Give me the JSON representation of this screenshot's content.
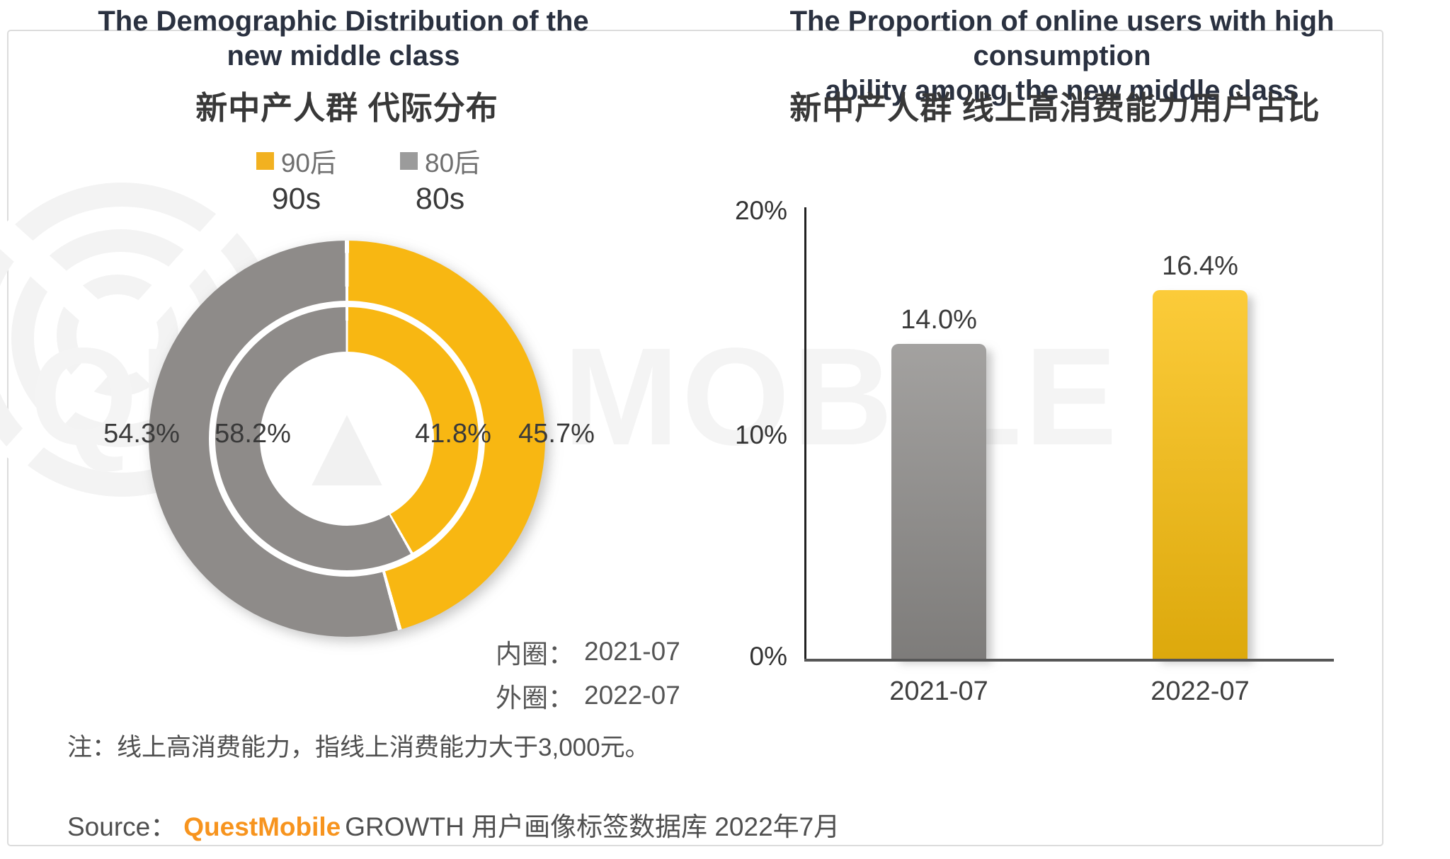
{
  "watermark": "QUEST MOBILE",
  "colors": {
    "brand_orange": "#f7941e",
    "title_navy": "#2a3140",
    "donut_yellow": "#f8b712",
    "donut_gray": "#8e8b89",
    "bar_gray": "#8f8d8b",
    "bar_yellow": "#fbc00e",
    "frame_border": "#dcdcdc"
  },
  "left_panel": {
    "title_en_line1": "The Demographic Distribution of the",
    "title_en_line2": "new middle class",
    "title_zh": "新中产人群 代际分布",
    "legend": {
      "items": [
        {
          "label_zh": "90后",
          "label_en": "90s",
          "color": "#f2b120"
        },
        {
          "label_zh": "80后",
          "label_en": "80s",
          "color": "#9b9b9b"
        }
      ]
    },
    "donut_labels": {
      "outer_gray": "54.3%",
      "inner_gray": "58.2%",
      "inner_yellow": "41.8%",
      "outer_yellow": "45.7%"
    },
    "ring_notes": [
      {
        "label": "内圈：",
        "value": "2021-07"
      },
      {
        "label": "外圈：",
        "value": "2022-07"
      }
    ]
  },
  "right_panel": {
    "title_en_line1": "The Proportion of online users with high consumption",
    "title_en_line2": "ability among the new middle class",
    "title_zh": "新中产人群 线上高消费能力用户占比",
    "y_ticks": {
      "t20": "20%",
      "t10": "10%",
      "t0": "0%"
    },
    "bars": [
      {
        "category": "2021-07",
        "value_label": "14.0%"
      },
      {
        "category": "2022-07",
        "value_label": "16.4%"
      }
    ]
  },
  "note": "注：线上高消费能力，指线上消费能力大于3,000元。",
  "source": {
    "prefix": "Source：",
    "brand": "QuestMobile",
    "suffix": "GROWTH 用户画像标签数据库 2022年7月"
  },
  "chart_data": [
    {
      "type": "pie",
      "subtype": "double-ring-donut",
      "title": "新中产人群 代际分布 / The Demographic Distribution of the new middle class",
      "legend": [
        "90后 (90s)",
        "80后 (80s)"
      ],
      "start_angle_deg": 0,
      "direction": "clockwise",
      "rings": [
        {
          "name": "2021-07",
          "position": "inner",
          "note": "内圈",
          "slices": [
            {
              "label": "90后",
              "value": 41.8
            },
            {
              "label": "80后",
              "value": 58.2
            }
          ]
        },
        {
          "name": "2022-07",
          "position": "outer",
          "note": "外圈",
          "slices": [
            {
              "label": "90后",
              "value": 45.7
            },
            {
              "label": "80后",
              "value": 54.3
            }
          ]
        }
      ],
      "colors": {
        "90后": "#f8b712",
        "80后": "#8e8b89"
      }
    },
    {
      "type": "bar",
      "title": "新中产人群 线上高消费能力用户占比 / The Proportion of online users with high consumption ability among the new middle class",
      "categories": [
        "2021-07",
        "2022-07"
      ],
      "values": [
        14.0,
        16.4
      ],
      "value_labels": [
        "14.0%",
        "16.4%"
      ],
      "bar_colors": [
        "#8f8d8b",
        "#fbc00e"
      ],
      "ylim": [
        0,
        20
      ],
      "yticks": [
        0,
        10,
        20
      ],
      "ytick_labels": [
        "0%",
        "10%",
        "20%"
      ],
      "grid": false,
      "legend_position": "none"
    }
  ]
}
